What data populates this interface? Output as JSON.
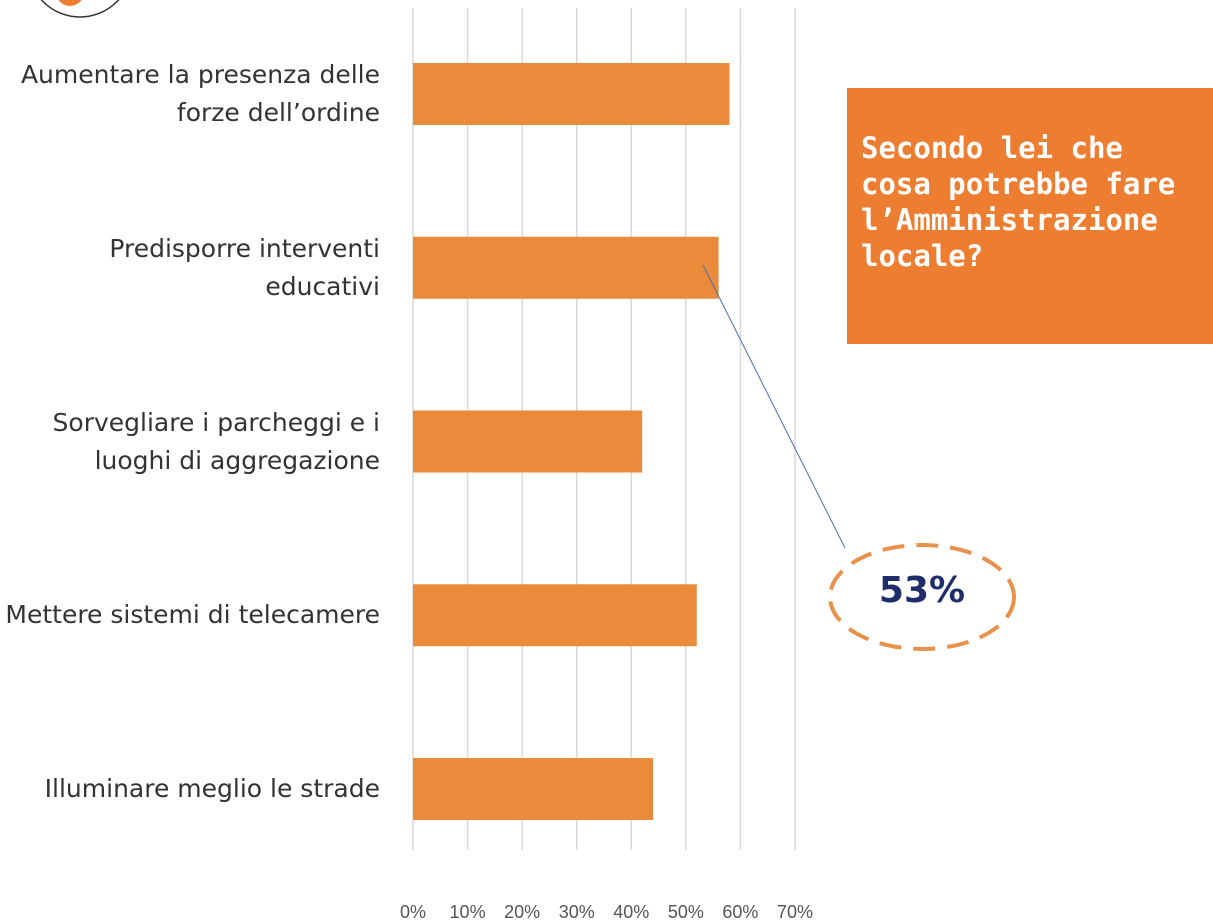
{
  "chart_data": {
    "type": "barh",
    "title": "Secondo lei che cosa potrebbe fare l’Amministrazione locale?",
    "annotation": "53%",
    "categories": [
      "Aumentare la presenza delle forze dell’ordine",
      "Predisporre interventi educativi",
      "Sorvegliare i parcheggi e i luoghi di aggregazione",
      "Mettere sistemi di telecamere",
      "Illuminare meglio le strade"
    ],
    "values": [
      58,
      56,
      42,
      52,
      44
    ],
    "color": "#ea8b3b",
    "xlim": [
      0,
      70
    ],
    "xticks": [
      {
        "value": 0,
        "label": "0%"
      },
      {
        "value": 10,
        "label": "10%"
      },
      {
        "value": 20,
        "label": "20%"
      },
      {
        "value": 30,
        "label": "30%"
      },
      {
        "value": 40,
        "label": "40%"
      },
      {
        "value": 50,
        "label": "50%"
      },
      {
        "value": 60,
        "label": "60%"
      },
      {
        "value": 70,
        "label": "70%"
      }
    ],
    "grid": true
  }
}
